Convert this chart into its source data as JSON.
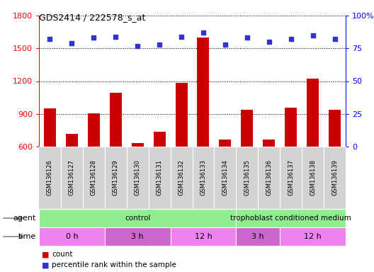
{
  "title": "GDS2414 / 222578_s_at",
  "samples": [
    "GSM136126",
    "GSM136127",
    "GSM136128",
    "GSM136129",
    "GSM136130",
    "GSM136131",
    "GSM136132",
    "GSM136133",
    "GSM136134",
    "GSM136135",
    "GSM136136",
    "GSM136137",
    "GSM136138",
    "GSM136139"
  ],
  "counts": [
    950,
    720,
    905,
    1090,
    630,
    735,
    1185,
    1600,
    665,
    940,
    665,
    960,
    1225,
    940
  ],
  "percentile_ranks": [
    82,
    79,
    83,
    84,
    77,
    78,
    84,
    87,
    78,
    83,
    80,
    82,
    85,
    82
  ],
  "ylim_left": [
    600,
    1800
  ],
  "ylim_right": [
    0,
    100
  ],
  "yticks_left": [
    600,
    900,
    1200,
    1500,
    1800
  ],
  "yticks_right": [
    0,
    25,
    50,
    75,
    100
  ],
  "bar_color": "#cc0000",
  "dot_color": "#3333cc",
  "background_color": "#ffffff",
  "sample_bg_color": "#d3d3d3",
  "sample_border_color": "#ffffff",
  "agent_color": "#90ee90",
  "time_color1": "#ee82ee",
  "time_color2": "#cc66cc",
  "agent_groups": [
    {
      "label": "control",
      "start": 0,
      "end": 9
    },
    {
      "label": "trophoblast conditioned medium",
      "start": 9,
      "end": 14
    }
  ],
  "time_groups": [
    {
      "label": "0 h",
      "start": 0,
      "end": 3,
      "alt": false
    },
    {
      "label": "3 h",
      "start": 3,
      "end": 6,
      "alt": true
    },
    {
      "label": "12 h",
      "start": 6,
      "end": 9,
      "alt": false
    },
    {
      "label": "3 h",
      "start": 9,
      "end": 11,
      "alt": true
    },
    {
      "label": "12 h",
      "start": 11,
      "end": 14,
      "alt": false
    }
  ],
  "legend_bar_label": "count",
  "legend_dot_label": "percentile rank within the sample"
}
